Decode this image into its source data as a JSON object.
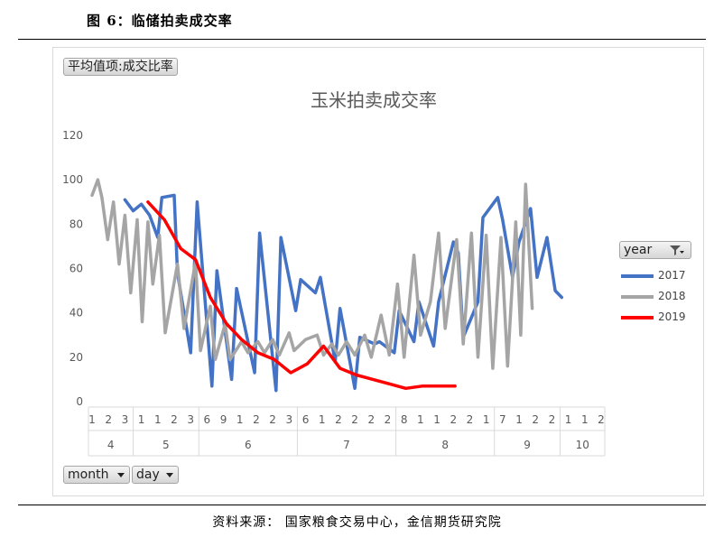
{
  "figure_title": "图 6：临储拍卖成交率",
  "pivot": {
    "value_field": "平均值项:成交比率",
    "row_fields": [
      "month",
      "day"
    ],
    "legend_field": "year"
  },
  "source": "资料来源：  国家粮食交易中心，金信期货研究院",
  "colors": {
    "2017": "#4472C4",
    "2018": "#A5A5A5",
    "2019": "#FF0000"
  },
  "chart_data": {
    "type": "line",
    "title": "玉米拍卖成交率",
    "ylim": [
      0,
      120
    ],
    "yticks": [
      0,
      20,
      40,
      60,
      80,
      100,
      120
    ],
    "grid": false,
    "legend_position": "right",
    "x_day_labels": [
      "1",
      "2",
      "3",
      "1",
      "1",
      "2",
      "3",
      "6",
      "9",
      "1",
      "2",
      "2",
      "3",
      "6",
      "1",
      "2",
      "2",
      "2",
      "2",
      "8",
      "1",
      "1",
      "2",
      "2",
      "1",
      "7",
      "1",
      "2",
      "2",
      "1",
      "1",
      "2"
    ],
    "month_groups": [
      {
        "label": "4",
        "start": 0,
        "end": 2
      },
      {
        "label": "5",
        "start": 3,
        "end": 6
      },
      {
        "label": "6",
        "start": 7,
        "end": 12
      },
      {
        "label": "7",
        "start": 13,
        "end": 18
      },
      {
        "label": "8",
        "start": 19,
        "end": 24
      },
      {
        "label": "9",
        "start": 25,
        "end": 28
      },
      {
        "label": "10",
        "start": 29,
        "end": 31
      }
    ],
    "series": [
      {
        "name": "2017",
        "points": [
          [
            2,
            91
          ],
          [
            2.5,
            86
          ],
          [
            3,
            89
          ],
          [
            3.5,
            84
          ],
          [
            4,
            74
          ],
          [
            4.25,
            92
          ],
          [
            5,
            93
          ],
          [
            5.2,
            58
          ],
          [
            6,
            22
          ],
          [
            6.4,
            90
          ],
          [
            7.3,
            7
          ],
          [
            7.6,
            59
          ],
          [
            8.5,
            10
          ],
          [
            8.8,
            51
          ],
          [
            9.9,
            13
          ],
          [
            10.2,
            76
          ],
          [
            11.2,
            5
          ],
          [
            11.5,
            74
          ],
          [
            12.4,
            41
          ],
          [
            12.7,
            55
          ],
          [
            13.6,
            49
          ],
          [
            13.9,
            56
          ],
          [
            14.8,
            18
          ],
          [
            15.1,
            42
          ],
          [
            16,
            6
          ],
          [
            16.3,
            29
          ],
          [
            17.2,
            26
          ],
          [
            17.5,
            27
          ],
          [
            18.4,
            22
          ],
          [
            18.7,
            41
          ],
          [
            19.6,
            27
          ],
          [
            19.9,
            45
          ],
          [
            20.8,
            25
          ],
          [
            21.1,
            45
          ],
          [
            22,
            72
          ],
          [
            22.3,
            67
          ],
          [
            22.6,
            29
          ],
          [
            23.5,
            45
          ],
          [
            23.8,
            83
          ],
          [
            24.7,
            92
          ],
          [
            25,
            82
          ],
          [
            25.6,
            56
          ],
          [
            26,
            72
          ],
          [
            26.7,
            87
          ],
          [
            27.1,
            56
          ],
          [
            27.7,
            74
          ],
          [
            28.2,
            50
          ],
          [
            28.6,
            47
          ]
        ]
      },
      {
        "name": "2018",
        "points": [
          [
            0,
            93
          ],
          [
            0.35,
            100
          ],
          [
            0.6,
            92
          ],
          [
            0.95,
            73
          ],
          [
            1.3,
            90
          ],
          [
            1.65,
            62
          ],
          [
            2,
            84
          ],
          [
            2.35,
            49
          ],
          [
            2.75,
            82
          ],
          [
            3.05,
            36
          ],
          [
            3.4,
            81
          ],
          [
            3.7,
            53
          ],
          [
            4.1,
            75
          ],
          [
            4.45,
            31
          ],
          [
            5.2,
            62
          ],
          [
            5.6,
            33
          ],
          [
            6.3,
            63
          ],
          [
            6.6,
            23
          ],
          [
            7.2,
            43
          ],
          [
            7.5,
            19
          ],
          [
            8.1,
            35
          ],
          [
            8.4,
            19
          ],
          [
            9.1,
            27
          ],
          [
            9.5,
            22
          ],
          [
            10.1,
            27
          ],
          [
            10.5,
            22
          ],
          [
            11,
            28
          ],
          [
            11.4,
            21
          ],
          [
            12,
            31
          ],
          [
            12.3,
            23
          ],
          [
            13,
            28
          ],
          [
            13.7,
            30
          ],
          [
            14.1,
            21
          ],
          [
            14.6,
            26
          ],
          [
            15,
            21
          ],
          [
            15.5,
            27
          ],
          [
            16,
            21
          ],
          [
            16.6,
            30
          ],
          [
            17,
            20
          ],
          [
            17.6,
            39
          ],
          [
            18.1,
            21
          ],
          [
            18.6,
            53
          ],
          [
            19,
            20
          ],
          [
            19.6,
            66
          ],
          [
            20,
            30
          ],
          [
            20.6,
            45
          ],
          [
            21.1,
            76
          ],
          [
            21.5,
            33
          ],
          [
            22.2,
            73
          ],
          [
            22.6,
            26
          ],
          [
            23.1,
            76
          ],
          [
            23.5,
            20
          ],
          [
            24,
            75
          ],
          [
            24.4,
            15
          ],
          [
            24.9,
            74
          ],
          [
            25.3,
            16
          ],
          [
            25.8,
            81
          ],
          [
            26.1,
            30
          ],
          [
            26.4,
            98
          ],
          [
            26.8,
            42
          ]
        ]
      },
      {
        "name": "2019",
        "points": [
          [
            3.4,
            90
          ],
          [
            4.4,
            82
          ],
          [
            5.4,
            69
          ],
          [
            6.3,
            64
          ],
          [
            7.2,
            47
          ],
          [
            8.2,
            35
          ],
          [
            9.1,
            28
          ],
          [
            10.1,
            22
          ],
          [
            11.1,
            19
          ],
          [
            12.1,
            13
          ],
          [
            13.1,
            17
          ],
          [
            14.1,
            25
          ],
          [
            15.1,
            15
          ],
          [
            16.1,
            12
          ],
          [
            17.1,
            10
          ],
          [
            18.1,
            8
          ],
          [
            19.1,
            6
          ],
          [
            20.1,
            7
          ],
          [
            21.1,
            7
          ],
          [
            22.1,
            7
          ]
        ]
      }
    ]
  }
}
